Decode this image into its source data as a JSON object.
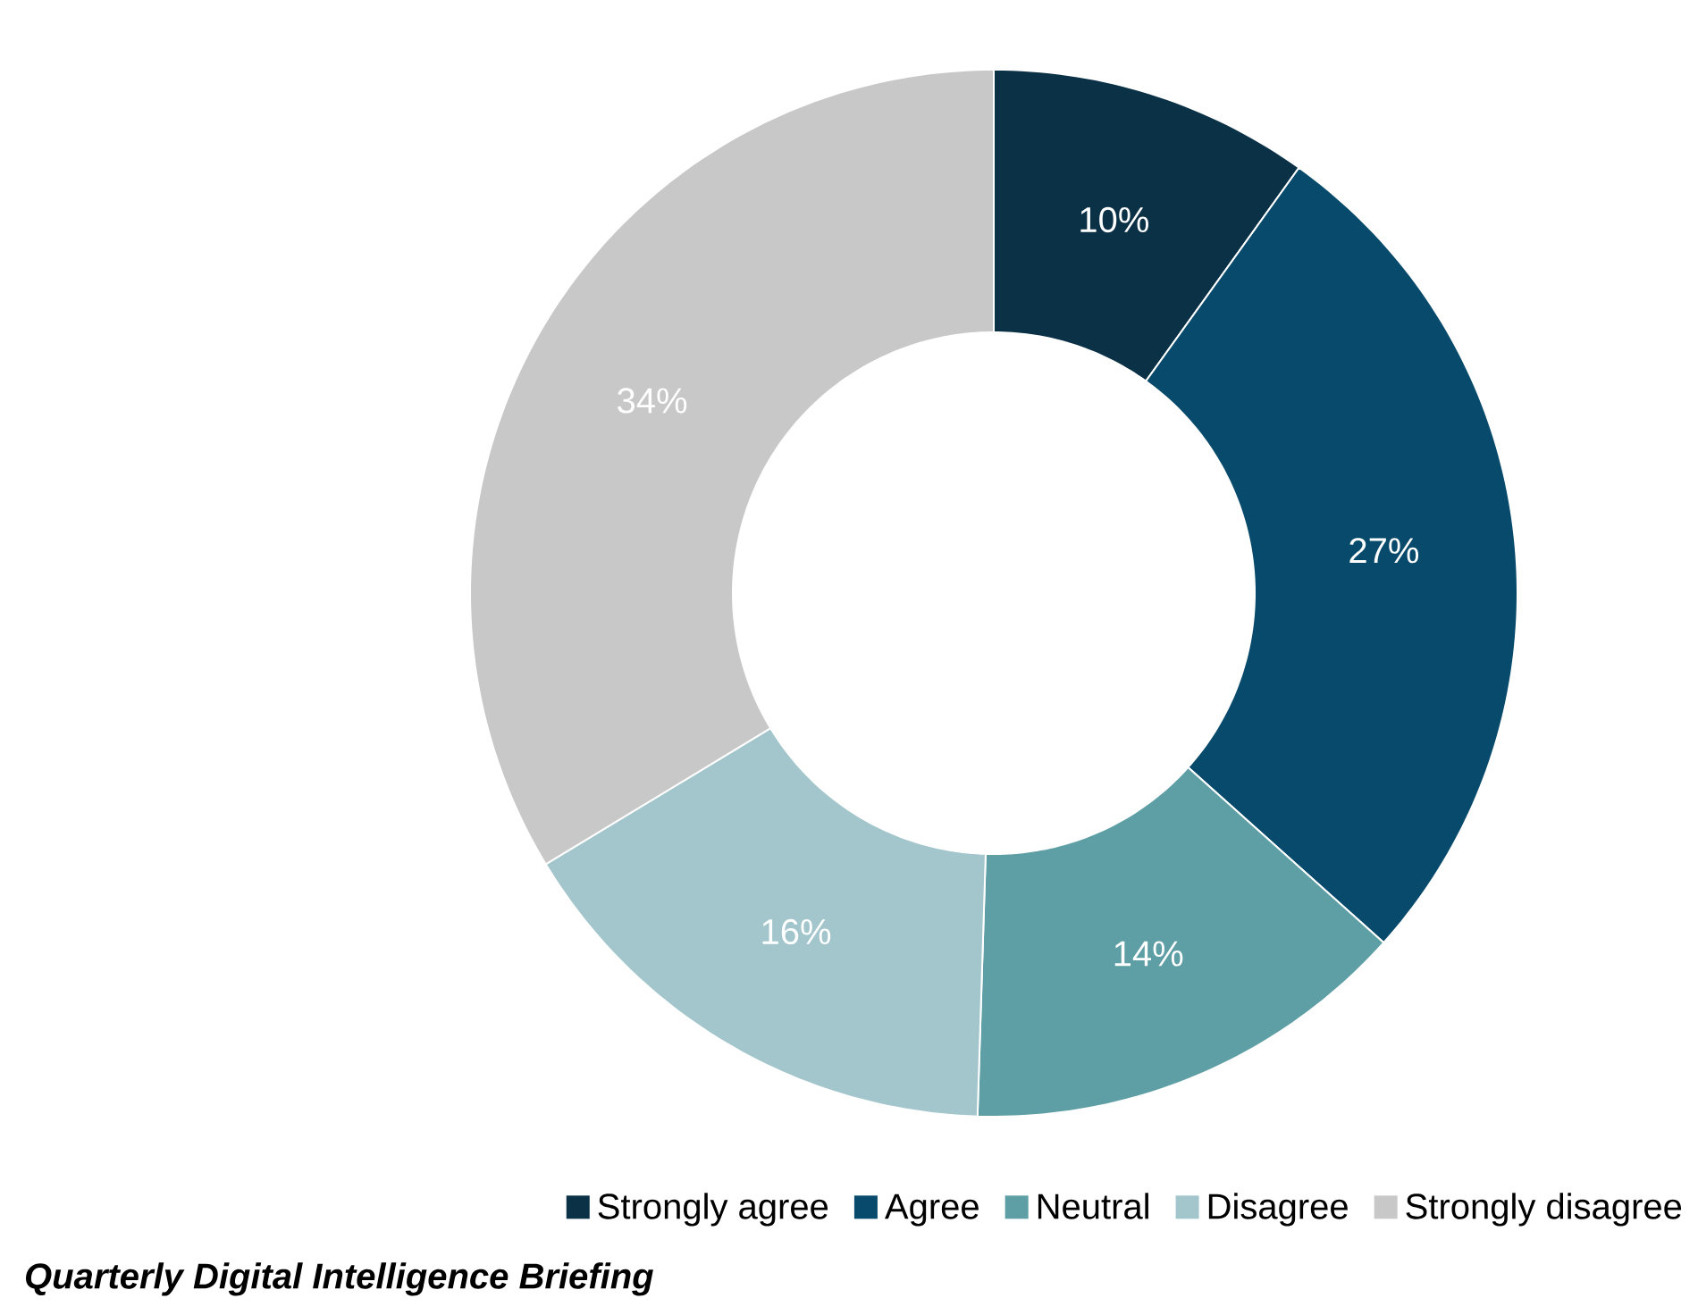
{
  "chart_data": {
    "type": "donut",
    "categories": [
      "Strongly agree",
      "Agree",
      "Neutral",
      "Disagree",
      "Strongly disagree"
    ],
    "values": [
      10,
      27,
      14,
      16,
      34
    ],
    "value_labels": [
      "10%",
      "27%",
      "14%",
      "16%",
      "34%"
    ],
    "colors": [
      "#0b3147",
      "#084a6b",
      "#5e9fa6",
      "#a2c6cc",
      "#c8c8c8"
    ],
    "legend": "bottom",
    "annotations": [
      "Quarterly Digital Intelligence Briefing"
    ]
  }
}
